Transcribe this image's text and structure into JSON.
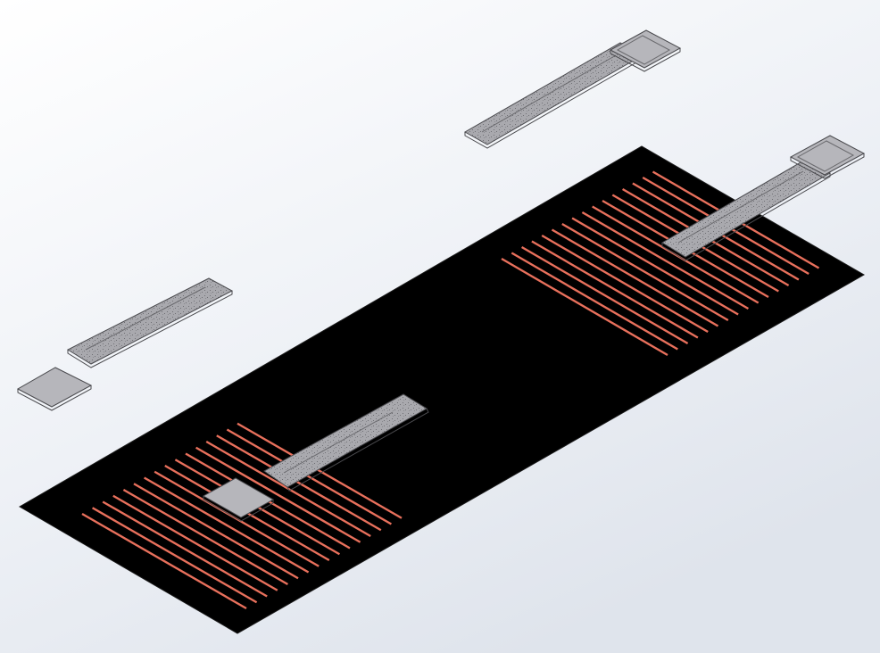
{
  "viewport": {
    "background_top": "#ffffff",
    "background_mid": "#eef1f6",
    "background_bottom": "#dfe4ec"
  },
  "model": {
    "substrate": {
      "fill": "#000000",
      "edge": "#1a1a1a"
    },
    "electrode_line": {
      "fill": "#e8705c",
      "edge": "#b84a38"
    },
    "metal_strip": {
      "fill": "#a9a9ae",
      "edge": "#4a4a4e",
      "speckle": "#7d7d82"
    },
    "metal_pad": {
      "fill": "#b6b6bb",
      "edge": "#4a4a4e"
    },
    "parts": [
      "substrate",
      "electrode-array-left",
      "electrode-array-right",
      "lead-strip-on-left-array",
      "lead-strip-on-right-array",
      "floating-strip-top",
      "floating-strip-left",
      "floating-pad-left",
      "contact-pad-left",
      "contact-pad-right",
      "contact-pad-top"
    ]
  }
}
